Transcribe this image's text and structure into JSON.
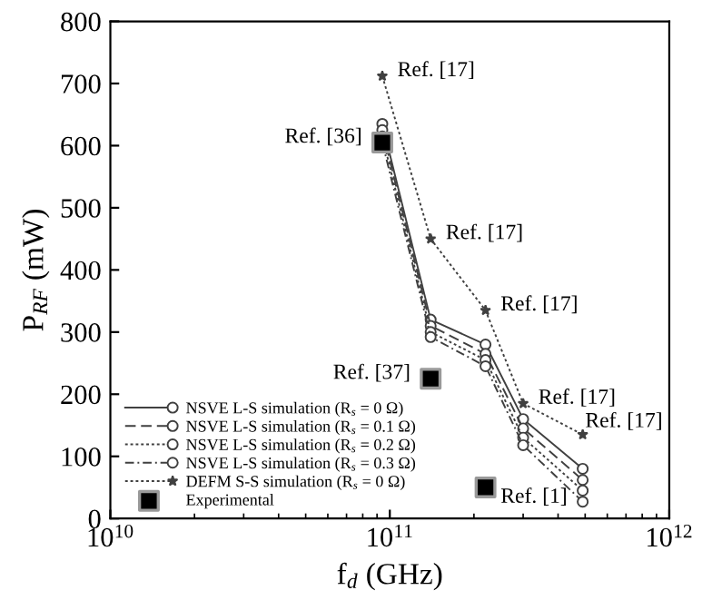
{
  "chart_data": {
    "type": "line",
    "xlabel": "f$_{d}$ (GHz)",
    "ylabel": "P$_{RF}$ (mW)",
    "log": "x",
    "xlim": [
      10000000000.0,
      1000000000000.0
    ],
    "xticks": [
      {
        "value": 10000000000.0,
        "label": "10$^{10}$"
      },
      {
        "value": 100000000000.0,
        "label": "10$^{11}$"
      },
      {
        "value": 1000000000000.0,
        "label": "10$^{12}$"
      }
    ],
    "ylim": [
      0,
      800
    ],
    "yticks": [
      0,
      100,
      200,
      300,
      400,
      500,
      600,
      700,
      800
    ],
    "grid": false,
    "legend": "bottom left",
    "x": [
      94000000000.0,
      140000000000.0,
      220000000000.0,
      300000000000.0,
      490000000000.0
    ],
    "series": [
      {
        "name": "NSVE L-S simulation (R$_{s}$ = 0 Ω)",
        "color": "#404040",
        "marker": "circle",
        "line_style": "solid",
        "values": [
          635,
          320,
          280,
          160,
          80
        ]
      },
      {
        "name": "NSVE L-S simulation (R$_{s}$ = 0.1 Ω)",
        "color": "#404040",
        "marker": "circle",
        "line_style": "dashed",
        "values": [
          625,
          310,
          265,
          145,
          62
        ]
      },
      {
        "name": "NSVE L-S simulation (R$_{s}$ = 0.2 Ω)",
        "color": "#404040",
        "marker": "circle",
        "line_style": "dotted",
        "values": [
          615,
          300,
          255,
          130,
          45
        ]
      },
      {
        "name": "NSVE L-S simulation (R$_{s}$ = 0.3 Ω)",
        "color": "#404040",
        "marker": "circle",
        "line_style": "dashdot",
        "values": [
          605,
          292,
          245,
          118,
          27
        ]
      },
      {
        "name": "DEFM S-S simulation (R$_{s}$ = 0 Ω)",
        "color": "#404040",
        "marker": "star",
        "line_style": "dotted",
        "values": [
          712,
          450,
          335,
          185,
          135
        ]
      },
      {
        "name": "Experimental",
        "type": "scatter",
        "color": "#000000",
        "marker": "square",
        "x": [
          94000000000.0,
          140000000000.0,
          220000000000.0
        ],
        "values": [
          605,
          225,
          50
        ]
      }
    ],
    "annotations": [
      {
        "text": "Ref. [17]",
        "x": 94000000000.0,
        "y": 712
      },
      {
        "text": "Ref. [17]",
        "x": 140000000000.0,
        "y": 450
      },
      {
        "text": "Ref. [17]",
        "x": 220000000000.0,
        "y": 335
      },
      {
        "text": "Ref. [17]",
        "x": 300000000000.0,
        "y": 185
      },
      {
        "text": "Ref. [17]",
        "x": 490000000000.0,
        "y": 135
      },
      {
        "text": "Ref. [36]",
        "x": 94000000000.0,
        "y": 605
      },
      {
        "text": "Ref. [37]",
        "x": 140000000000.0,
        "y": 225
      },
      {
        "text": "Ref. [1]",
        "x": 220000000000.0,
        "y": 50
      }
    ]
  }
}
